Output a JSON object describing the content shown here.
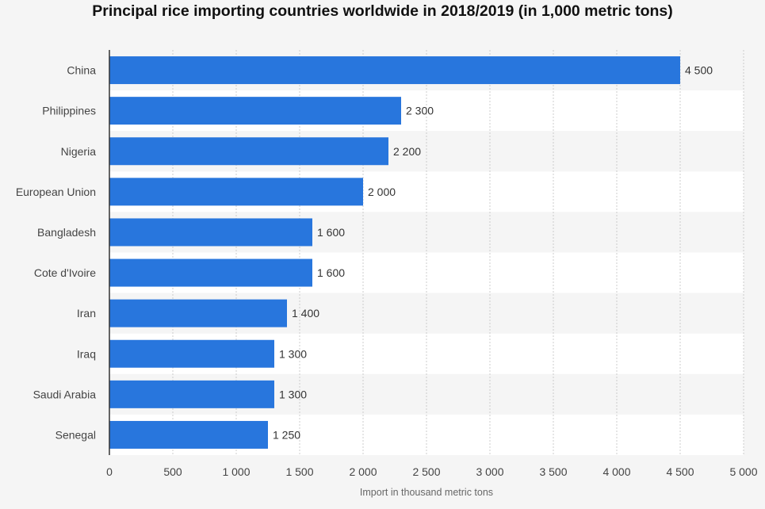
{
  "chart_data": {
    "type": "bar",
    "orientation": "horizontal",
    "title": "Principal rice importing countries worldwide in 2018/2019 (in 1,000 metric tons)",
    "xlabel": "Import in thousand metric tons",
    "ylabel": "",
    "categories": [
      "China",
      "Philippines",
      "Nigeria",
      "European Union",
      "Bangladesh",
      "Cote d'Ivoire",
      "Iran",
      "Iraq",
      "Saudi Arabia",
      "Senegal"
    ],
    "values": [
      4500,
      2300,
      2200,
      2000,
      1600,
      1600,
      1400,
      1300,
      1300,
      1250
    ],
    "value_labels": [
      "4 500",
      "2 300",
      "2 200",
      "2 000",
      "1 600",
      "1 600",
      "1 400",
      "1 300",
      "1 300",
      "1 250"
    ],
    "xlim": [
      0,
      5000
    ],
    "x_ticks": [
      0,
      500,
      1000,
      1500,
      2000,
      2500,
      3000,
      3500,
      4000,
      4500,
      5000
    ],
    "x_tick_labels": [
      "0",
      "500",
      "1 000",
      "1 500",
      "2 000",
      "2 500",
      "3 000",
      "3 500",
      "4 000",
      "4 500",
      "5 000"
    ],
    "grid": true,
    "bar_color": "#2876dd",
    "band_colors": [
      "#f5f5f5",
      "#ffffff"
    ]
  }
}
